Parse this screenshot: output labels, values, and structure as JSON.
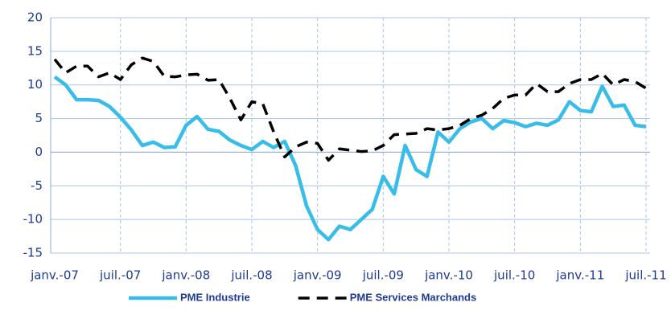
{
  "chart_data": {
    "type": "line",
    "categories": [
      "janv.-07",
      null,
      null,
      null,
      null,
      null,
      "juil.-07",
      null,
      null,
      null,
      null,
      null,
      "janv.-08",
      null,
      null,
      null,
      null,
      null,
      "juil.-08",
      null,
      null,
      null,
      null,
      null,
      "janv.-09",
      null,
      null,
      null,
      null,
      null,
      "juil.-09",
      null,
      null,
      null,
      null,
      null,
      "janv.-10",
      null,
      null,
      null,
      null,
      null,
      "juil.-10",
      null,
      null,
      null,
      null,
      null,
      "janv.-11",
      null,
      null,
      null,
      null,
      null,
      "juil.-11"
    ],
    "series": [
      {
        "name": "PME Industrie",
        "color": "#38bde9",
        "dash": false,
        "values": [
          11.2,
          10,
          7.8,
          7.8,
          7.7,
          6.8,
          5.2,
          3.3,
          1,
          1.5,
          0.7,
          0.8,
          4,
          5.3,
          3.4,
          3.1,
          1.8,
          1,
          0.4,
          1.6,
          0.7,
          1.6,
          -2,
          -8,
          -11.5,
          -13,
          -11,
          -11.5,
          -10,
          -8.5,
          -3.6,
          -6.2,
          1,
          -2.6,
          -3.6,
          3,
          1.5,
          3.5,
          4.5,
          5,
          3.5,
          4.7,
          4.4,
          3.8,
          4.3,
          4,
          4.8,
          7.5,
          6.2,
          6,
          9.8,
          6.8,
          7,
          4,
          3.8
        ]
      },
      {
        "name": "PME Services Marchands",
        "color": "#000000",
        "dash": true,
        "values": [
          13.8,
          11.8,
          12.8,
          12.8,
          11.2,
          11.8,
          10.8,
          13,
          14,
          13.5,
          11.3,
          11.2,
          11.5,
          11.6,
          10.7,
          10.8,
          8,
          4.8,
          7.5,
          7.2,
          3,
          -0.7,
          0.8,
          1.5,
          1.3,
          -1.2,
          0.5,
          0.3,
          0.1,
          0.2,
          1,
          2.6,
          2.7,
          2.8,
          3.5,
          3.3,
          3.5,
          4,
          5,
          5.5,
          6.5,
          8,
          8.5,
          8.5,
          10.2,
          9,
          9,
          10.2,
          10.8,
          10.8,
          11.7,
          10,
          10.8,
          10.5,
          9.5
        ]
      }
    ],
    "ylim": [
      -15,
      20
    ],
    "yticks": [
      -15,
      -10,
      -5,
      0,
      5,
      10,
      15,
      20
    ],
    "grid": true,
    "legend": "bottom"
  }
}
